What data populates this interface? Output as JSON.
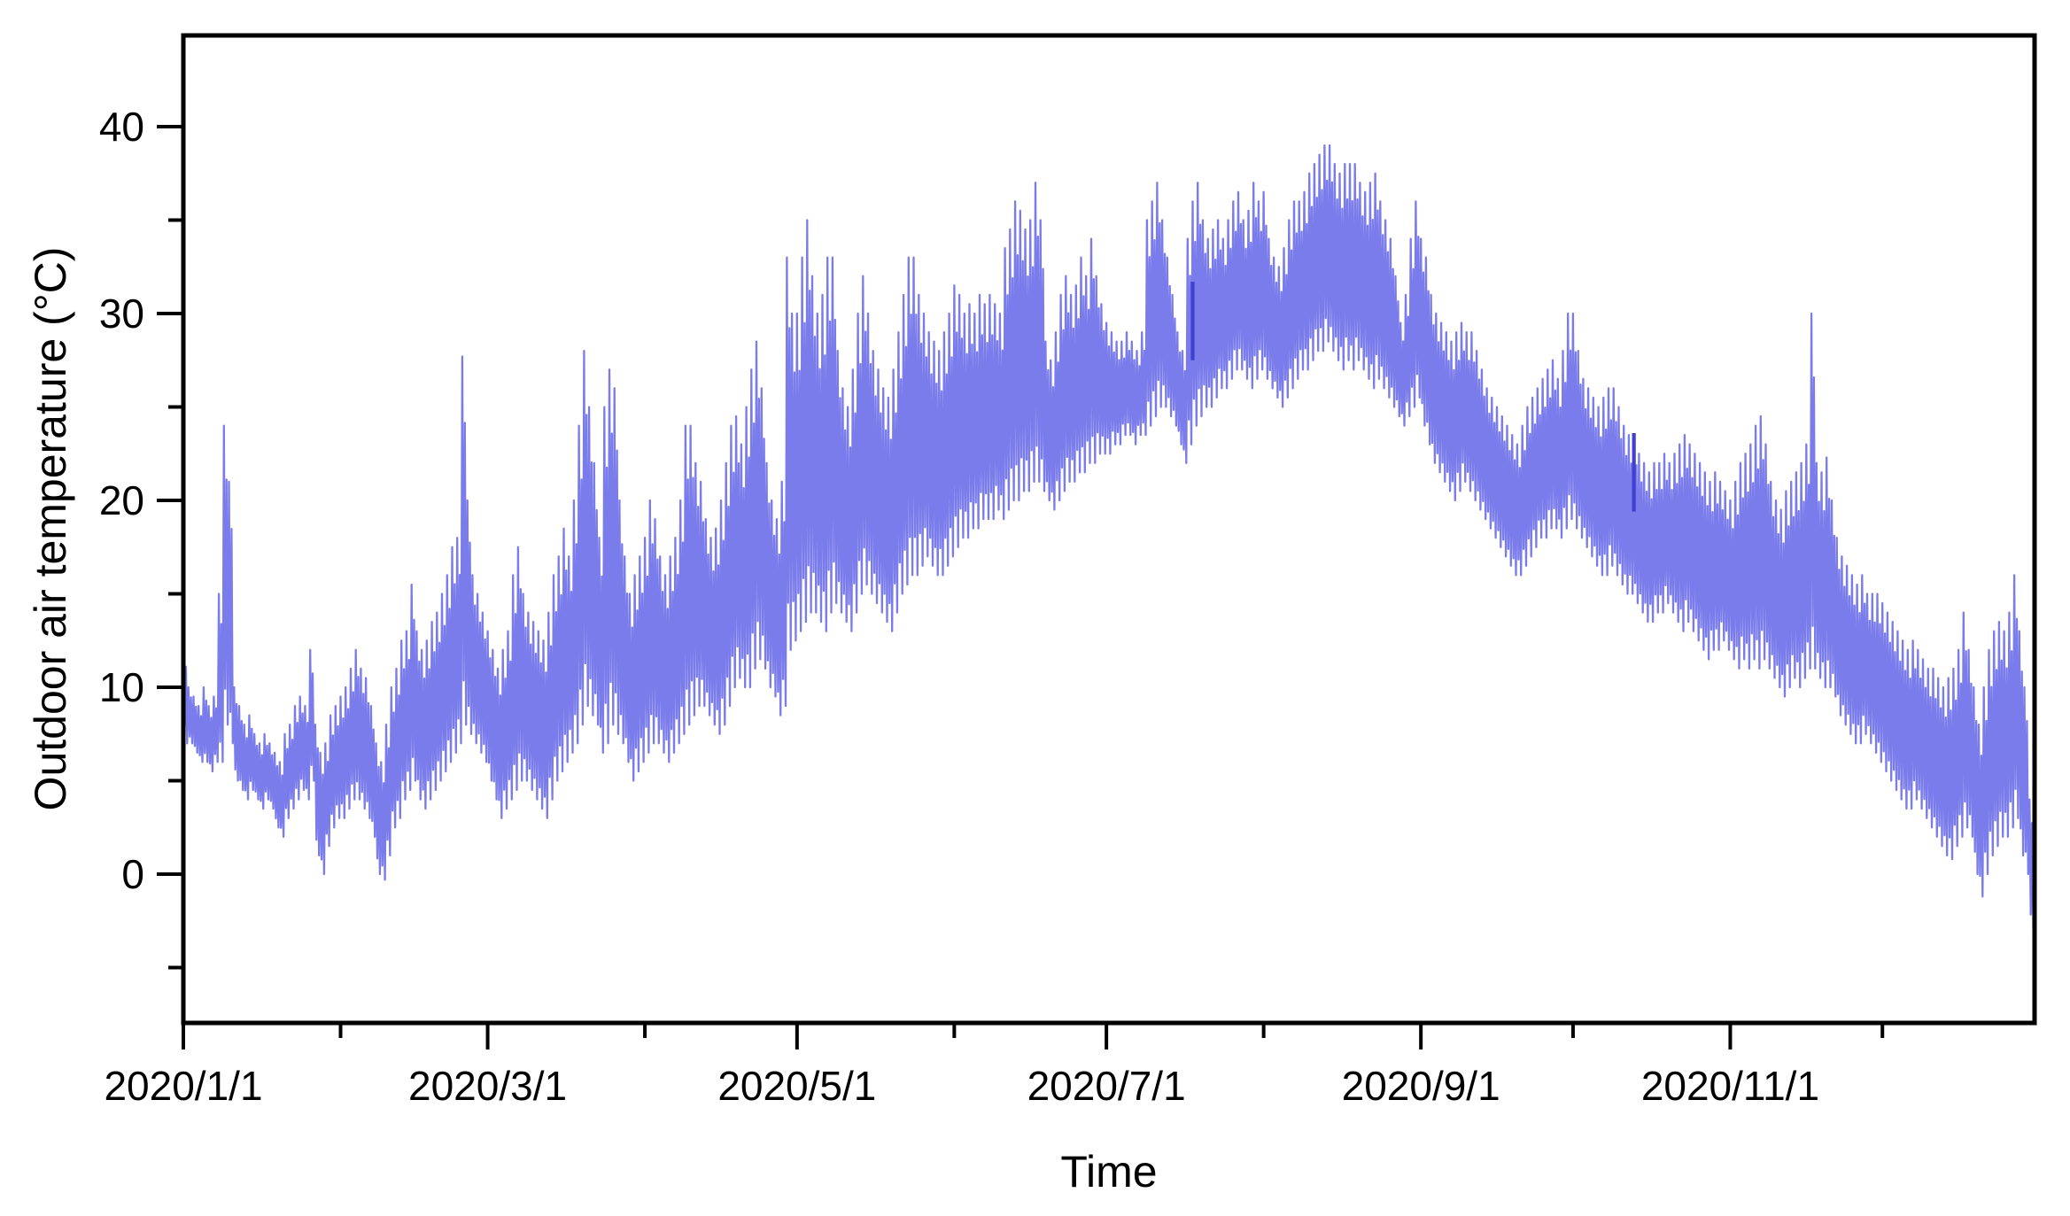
{
  "figure": {
    "background_color": "#ffffff",
    "axis_color": "#000000",
    "text_color": "#000000"
  },
  "chart_data": {
    "type": "line",
    "title": "",
    "xlabel": "Time",
    "ylabel": "Outdoor air temperature (°C)",
    "grid": false,
    "legend": false,
    "x_axis": {
      "start_date": "2020/1/1",
      "end_date": "2020/12/31",
      "major_tick_labels": [
        "2020/1/1",
        "2020/3/1",
        "2020/5/1",
        "2020/7/1",
        "2020/9/1",
        "2020/11/1"
      ],
      "major_tick_days": [
        0,
        60,
        121,
        182,
        244,
        305
      ],
      "minor_tick_days": [
        31,
        91,
        152,
        213,
        274,
        335
      ],
      "range_days": [
        0,
        365.9
      ]
    },
    "y_axis": {
      "unit": "°C",
      "major_ticks": [
        0,
        10,
        20,
        30,
        40
      ],
      "major_tick_labels": [
        "0",
        "10",
        "20",
        "30",
        "40"
      ],
      "minor_ticks": [
        -5,
        5,
        15,
        25,
        35
      ],
      "range": [
        -7.96,
        44.88
      ]
    },
    "series": [
      {
        "name": "Outdoor air temperature",
        "color": "#7b7ceb",
        "sampling": "daily min/max envelope read from the dense hourly trace, 366 days of 2020",
        "n_days": 366,
        "daily_max": [
          12,
          10,
          9.5,
          9,
          10,
          9,
          9.5,
          15,
          24,
          21,
          10,
          9,
          8,
          8.5,
          7.5,
          7,
          7.5,
          7,
          6.5,
          6,
          7.5,
          8,
          9,
          9.5,
          9,
          12,
          8,
          6.5,
          7,
          8.5,
          9,
          9.5,
          10,
          11,
          12,
          11,
          10.5,
          9,
          7,
          6,
          8,
          10,
          11,
          12.5,
          13,
          15.5,
          13,
          12,
          12.5,
          13.5,
          14,
          15,
          16,
          17.5,
          18,
          27.7,
          20,
          16,
          15,
          14,
          13,
          12,
          11,
          12,
          13,
          16,
          17.5,
          15,
          14,
          13.5,
          13,
          12.5,
          14,
          16,
          17,
          18.5,
          17,
          20,
          24,
          28,
          25,
          22,
          18,
          25,
          27,
          26,
          20,
          17,
          15,
          16,
          17,
          18,
          20,
          19,
          17,
          16,
          17,
          18,
          20,
          24,
          24,
          22,
          21,
          19,
          18,
          18.5,
          20,
          22,
          24,
          24.5,
          23,
          25,
          27,
          28.5,
          26,
          22,
          20,
          19,
          21,
          33,
          30,
          30,
          33,
          35,
          32,
          30,
          31,
          33,
          33,
          28,
          26,
          25,
          27,
          30,
          32,
          30,
          28,
          27,
          26,
          25.5,
          27,
          29,
          31,
          33,
          33,
          31,
          30,
          29,
          28.5,
          28,
          29,
          30,
          31.5,
          31,
          30,
          30.5,
          30,
          31,
          30.5,
          31,
          30.5,
          30,
          33.5,
          34.5,
          36,
          35.5,
          34.5,
          35,
          37,
          35,
          28.5,
          27.5,
          29,
          31,
          32,
          31,
          31.5,
          33,
          32,
          34,
          32,
          30.5,
          29.5,
          29,
          28.5,
          28.5,
          29,
          28.5,
          28,
          29,
          35,
          36,
          37,
          35,
          33,
          31,
          29,
          28,
          34,
          36,
          37,
          35,
          34,
          34.5,
          35,
          34,
          35,
          36,
          36.5,
          35,
          35.5,
          37,
          36,
          36.5,
          34,
          33,
          32.5,
          33.5,
          35,
          36,
          36,
          36.5,
          37.5,
          38,
          38.5,
          39,
          39,
          38,
          37.5,
          38,
          38,
          38,
          37,
          36.5,
          37,
          37.5,
          36,
          35,
          34,
          32,
          29.5,
          31,
          34,
          36,
          34,
          33,
          31,
          30,
          29.5,
          29,
          28.5,
          29,
          29.5,
          29,
          29,
          28,
          27,
          26,
          25.5,
          25,
          24.5,
          24,
          23.5,
          23,
          24,
          25,
          25.5,
          26,
          26.5,
          27,
          27.5,
          26.5,
          28,
          30,
          30,
          28,
          26.5,
          26,
          25.5,
          25,
          25.5,
          26,
          26,
          25,
          24,
          23.5,
          23.5,
          22.5,
          22,
          21.5,
          22,
          22,
          22.5,
          22,
          22.5,
          23,
          23.5,
          23,
          22.5,
          22,
          21.5,
          21,
          21.5,
          21,
          20.5,
          20,
          21,
          22,
          22.5,
          23,
          24,
          24.5,
          23,
          21,
          20,
          19.5,
          20.5,
          21,
          21.5,
          22,
          23,
          30,
          22,
          21.5,
          22.3,
          20,
          18,
          17,
          16.5,
          16,
          15.5,
          16,
          15,
          15,
          15,
          14.5,
          14,
          13.5,
          13,
          12.5,
          12,
          12.5,
          12,
          11.5,
          11,
          11,
          10.5,
          10,
          10.5,
          11,
          12,
          14,
          12,
          10,
          8,
          10,
          12,
          13,
          13.5,
          13,
          14,
          16,
          13,
          10,
          4,
          -1
        ],
        "daily_min": [
          7,
          7,
          6.5,
          6,
          6,
          5.5,
          6,
          6,
          8,
          7,
          5,
          4.5,
          4,
          4.5,
          4,
          3.5,
          4,
          3.5,
          2.5,
          2,
          3,
          3.5,
          4,
          4.5,
          4,
          5,
          1,
          0,
          1.5,
          2.5,
          3,
          3,
          3.5,
          4,
          4,
          3.5,
          3,
          2,
          0,
          -0.3,
          1,
          2.5,
          3,
          4,
          4.5,
          5,
          4,
          3.5,
          4,
          4.5,
          5,
          5.5,
          6,
          6.5,
          7,
          8,
          7.5,
          7,
          6.5,
          6,
          5,
          4,
          3,
          3.5,
          4,
          4.5,
          5,
          5,
          4.5,
          4,
          3.5,
          3,
          4,
          5,
          5.5,
          6,
          6.5,
          7,
          8,
          9,
          8.5,
          8,
          6.5,
          7,
          8,
          7.5,
          7,
          6,
          5,
          5.5,
          6,
          6.5,
          7,
          7,
          6.5,
          6,
          6.5,
          7,
          7.5,
          8,
          8.5,
          9,
          9,
          8.5,
          8,
          7.5,
          8,
          9,
          10,
          10.5,
          10,
          10,
          11,
          11.5,
          11,
          10,
          9.5,
          8.5,
          9,
          12,
          12.5,
          13,
          13.5,
          14,
          14,
          13.5,
          13,
          14,
          14.5,
          14,
          13.5,
          13,
          14,
          15,
          15.5,
          15,
          14.5,
          14,
          13.5,
          13,
          14,
          15,
          15.5,
          16,
          16,
          16.5,
          17,
          16.5,
          16,
          16,
          16.5,
          17,
          17.5,
          18,
          18,
          18.5,
          18.5,
          19,
          19,
          19,
          19.5,
          19,
          19.5,
          20,
          20,
          20.5,
          20.5,
          21,
          21,
          20.5,
          20,
          19.5,
          20,
          20.5,
          21,
          21,
          21.5,
          21.5,
          22,
          22,
          22.5,
          22.5,
          22.5,
          23,
          23,
          23.5,
          23.5,
          23,
          23.5,
          23.5,
          24,
          24.5,
          25,
          25,
          24.5,
          24,
          23,
          22,
          23,
          24,
          24.5,
          25,
          25,
          25.5,
          26,
          26,
          26.5,
          27,
          27,
          26.5,
          26,
          26.5,
          27,
          26.5,
          26,
          25.5,
          25,
          25.5,
          26,
          26.5,
          27,
          27,
          27.5,
          28,
          28,
          28.5,
          28,
          27.5,
          27,
          27.5,
          27,
          27.5,
          27,
          26.5,
          26,
          26.5,
          26,
          25.5,
          25,
          24.5,
          24,
          24.5,
          25,
          25.5,
          24,
          23,
          22,
          21.5,
          21,
          20.5,
          20,
          20.5,
          21,
          20.5,
          20,
          19.5,
          19,
          18.5,
          18,
          17.5,
          17,
          16.5,
          16,
          16,
          16.5,
          17,
          17.5,
          18,
          18,
          18.5,
          18.5,
          18,
          18.5,
          19,
          18.5,
          18,
          17.5,
          17,
          16.5,
          16,
          16,
          16.5,
          16,
          15.5,
          15,
          15,
          14.5,
          14,
          13.5,
          13.5,
          14,
          14,
          14.5,
          14,
          13.5,
          13,
          13.5,
          13,
          12.5,
          12,
          11.5,
          12,
          12,
          12.5,
          12,
          11.5,
          11,
          11.5,
          11,
          11.5,
          11,
          11.5,
          11,
          10.5,
          10,
          9.5,
          10,
          10.5,
          10,
          10.5,
          11,
          11,
          10.5,
          10,
          10,
          9.5,
          8.5,
          8,
          7.5,
          7,
          7,
          7.5,
          7,
          6.5,
          6,
          5.5,
          5,
          4.5,
          4,
          3.5,
          3.5,
          4,
          3.5,
          3,
          2.5,
          2,
          1.5,
          1,
          0.8,
          1.5,
          2,
          2.5,
          2,
          0,
          -1.2,
          0,
          1,
          1.5,
          2,
          2,
          2.5,
          3,
          1,
          0,
          -3,
          -5.3
        ]
      }
    ],
    "dark_overdraw_streaks": [
      {
        "day": 199,
        "value_from": 27.5,
        "value_to": 31.7,
        "color": "#4040d0"
      },
      {
        "day": 286,
        "value_from": 19.4,
        "value_to": 23.6,
        "color": "#4040d0"
      }
    ]
  }
}
